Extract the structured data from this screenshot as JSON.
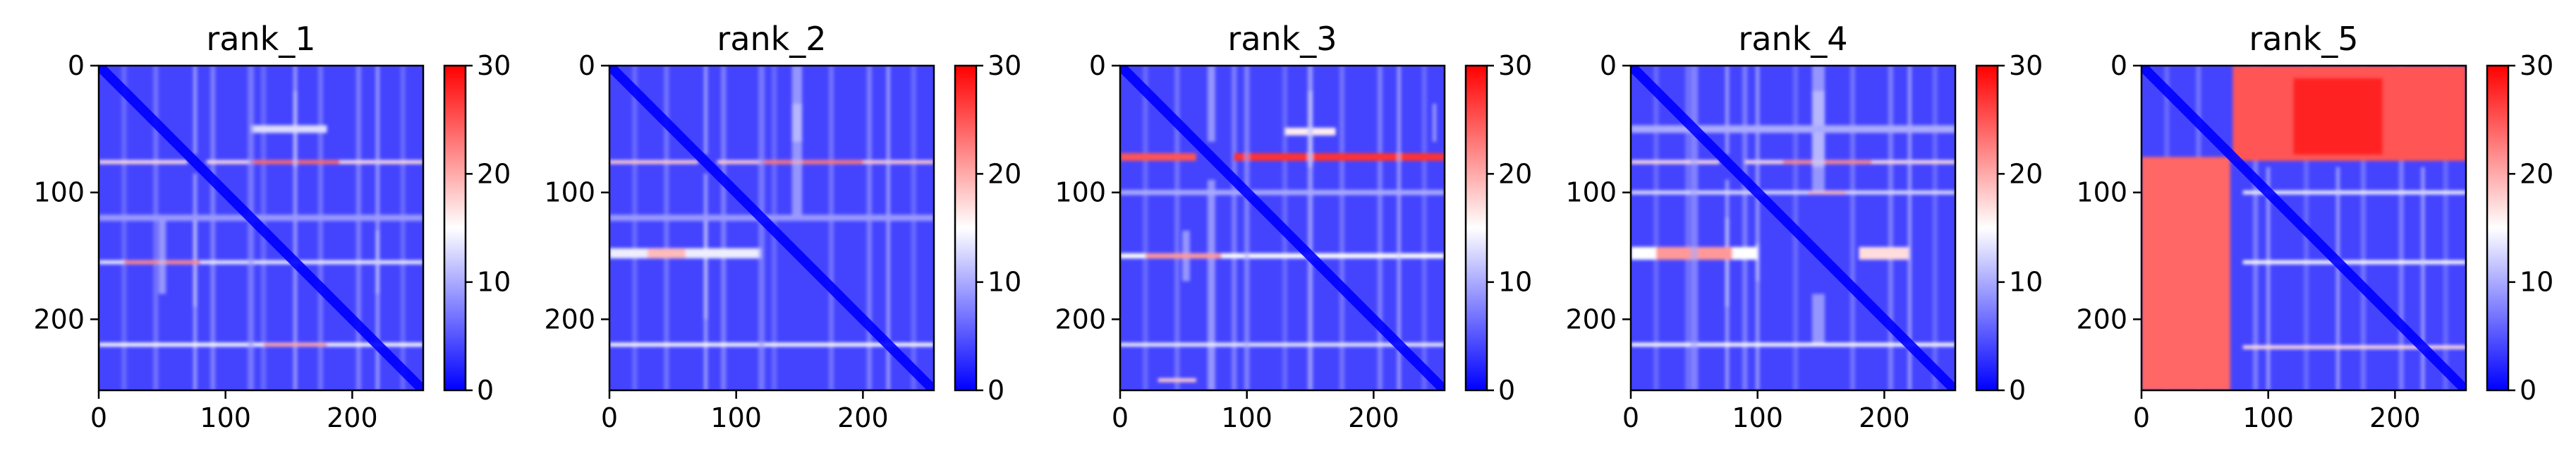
{
  "chart_data": [
    {
      "type": "heatmap",
      "title": "rank_1",
      "xlim": [
        0,
        256
      ],
      "ylim": [
        256,
        0
      ],
      "xticks": [
        0,
        100,
        200
      ],
      "yticks": [
        0,
        100,
        200
      ],
      "colorbar": {
        "range": [
          0,
          30
        ],
        "ticks": [
          0,
          10,
          20,
          30
        ],
        "colors": [
          "#0000ff",
          "#ffffff",
          "#ff0000"
        ]
      },
      "bands": [
        {
          "pos": 76,
          "w": 3,
          "val": 17,
          "segments": [
            [
              0,
              70,
              17
            ],
            [
              85,
              256,
              17
            ],
            [
              120,
              190,
              24
            ]
          ]
        },
        {
          "pos": 155,
          "w": 3,
          "val": 16,
          "segments": [
            [
              0,
              256,
              14
            ],
            [
              20,
              80,
              22
            ]
          ]
        },
        {
          "pos": 220,
          "w": 3,
          "val": 16,
          "segments": [
            [
              0,
              256,
              15
            ],
            [
              130,
              180,
              20
            ]
          ]
        },
        {
          "pos": 50,
          "w": 6,
          "val": 10,
          "segments": [
            [
              120,
              180,
              13
            ]
          ]
        },
        {
          "pos": 120,
          "w": 5,
          "val": 9,
          "segments": [
            [
              0,
              256,
              9
            ]
          ]
        }
      ]
    },
    {
      "type": "heatmap",
      "title": "rank_2",
      "xlim": [
        0,
        256
      ],
      "ylim": [
        256,
        0
      ],
      "xticks": [
        0,
        100,
        200
      ],
      "yticks": [
        0,
        100,
        200
      ],
      "colorbar": {
        "range": [
          0,
          30
        ],
        "ticks": [
          0,
          10,
          20,
          30
        ],
        "colors": [
          "#0000ff",
          "#ffffff",
          "#ff0000"
        ]
      },
      "bands": [
        {
          "pos": 76,
          "w": 3,
          "val": 17,
          "segments": [
            [
              0,
              70,
              18
            ],
            [
              85,
              256,
              18
            ],
            [
              120,
              200,
              23
            ]
          ]
        },
        {
          "pos": 148,
          "w": 8,
          "val": 13,
          "segments": [
            [
              0,
              120,
              14
            ],
            [
              30,
              60,
              19
            ]
          ]
        },
        {
          "pos": 220,
          "w": 3,
          "val": 15,
          "segments": [
            [
              0,
              256,
              15
            ]
          ]
        },
        {
          "pos": 120,
          "w": 5,
          "val": 9,
          "segments": [
            [
              0,
              256,
              9
            ]
          ]
        }
      ]
    },
    {
      "type": "heatmap",
      "title": "rank_3",
      "xlim": [
        0,
        256
      ],
      "ylim": [
        256,
        0
      ],
      "xticks": [
        0,
        100,
        200
      ],
      "yticks": [
        0,
        100,
        200
      ],
      "colorbar": {
        "range": [
          0,
          30
        ],
        "ticks": [
          0,
          10,
          20,
          30
        ],
        "colors": [
          "#0000ff",
          "#ffffff",
          "#ff0000"
        ]
      },
      "bands": [
        {
          "pos": 72,
          "w": 6,
          "val": 25,
          "segments": [
            [
              0,
              60,
              25
            ],
            [
              90,
              256,
              27
            ]
          ]
        },
        {
          "pos": 52,
          "w": 6,
          "val": 13,
          "segments": [
            [
              130,
              170,
              16
            ]
          ]
        },
        {
          "pos": 150,
          "w": 4,
          "val": 17,
          "segments": [
            [
              0,
              256,
              15
            ],
            [
              20,
              80,
              21
            ]
          ]
        },
        {
          "pos": 220,
          "w": 3,
          "val": 14,
          "segments": [
            [
              0,
              256,
              14
            ]
          ]
        },
        {
          "pos": 248,
          "w": 3,
          "val": 15,
          "segments": [
            [
              30,
              60,
              18
            ]
          ]
        },
        {
          "pos": 100,
          "w": 4,
          "val": 10,
          "segments": [
            [
              0,
              256,
              10
            ]
          ]
        }
      ]
    },
    {
      "type": "heatmap",
      "title": "rank_4",
      "xlim": [
        0,
        256
      ],
      "ylim": [
        256,
        0
      ],
      "xticks": [
        0,
        100,
        200
      ],
      "yticks": [
        0,
        100,
        200
      ],
      "colorbar": {
        "range": [
          0,
          30
        ],
        "ticks": [
          0,
          10,
          20,
          30
        ],
        "colors": [
          "#0000ff",
          "#ffffff",
          "#ff0000"
        ]
      },
      "bands": [
        {
          "pos": 76,
          "w": 3,
          "val": 17,
          "segments": [
            [
              0,
              70,
              17
            ],
            [
              90,
              256,
              17
            ],
            [
              120,
              190,
              22
            ]
          ]
        },
        {
          "pos": 100,
          "w": 3,
          "val": 14,
          "segments": [
            [
              0,
              256,
              13
            ],
            [
              140,
              170,
              19
            ]
          ]
        },
        {
          "pos": 148,
          "w": 10,
          "val": 15,
          "segments": [
            [
              0,
              100,
              15
            ],
            [
              20,
              80,
              21
            ],
            [
              180,
              220,
              17
            ]
          ]
        },
        {
          "pos": 220,
          "w": 3,
          "val": 15,
          "segments": [
            [
              0,
              256,
              15
            ]
          ]
        },
        {
          "pos": 50,
          "w": 6,
          "val": 10,
          "segments": [
            [
              0,
              256,
              10
            ]
          ]
        }
      ]
    },
    {
      "type": "heatmap",
      "title": "rank_5",
      "xlim": [
        0,
        256
      ],
      "ylim": [
        256,
        0
      ],
      "xticks": [
        0,
        100,
        200
      ],
      "yticks": [
        0,
        100,
        200
      ],
      "colorbar": {
        "range": [
          0,
          30
        ],
        "ticks": [
          0,
          10,
          20,
          30
        ],
        "colors": [
          "#0000ff",
          "#ffffff",
          "#ff0000"
        ]
      },
      "blocks": [
        {
          "x": [
            72,
            256
          ],
          "y": [
            0,
            75
          ],
          "val": 25
        },
        {
          "x": [
            0,
            70
          ],
          "y": [
            72,
            256
          ],
          "val": 24
        },
        {
          "x": [
            120,
            190
          ],
          "y": [
            10,
            70
          ],
          "val": 28
        }
      ],
      "bands": [
        {
          "pos": 100,
          "w": 3,
          "val": 14,
          "segments": [
            [
              80,
              256,
              14
            ]
          ]
        },
        {
          "pos": 155,
          "w": 3,
          "val": 15,
          "segments": [
            [
              80,
              256,
              15
            ]
          ]
        },
        {
          "pos": 222,
          "w": 3,
          "val": 17,
          "segments": [
            [
              80,
              256,
              17
            ]
          ]
        }
      ]
    }
  ]
}
